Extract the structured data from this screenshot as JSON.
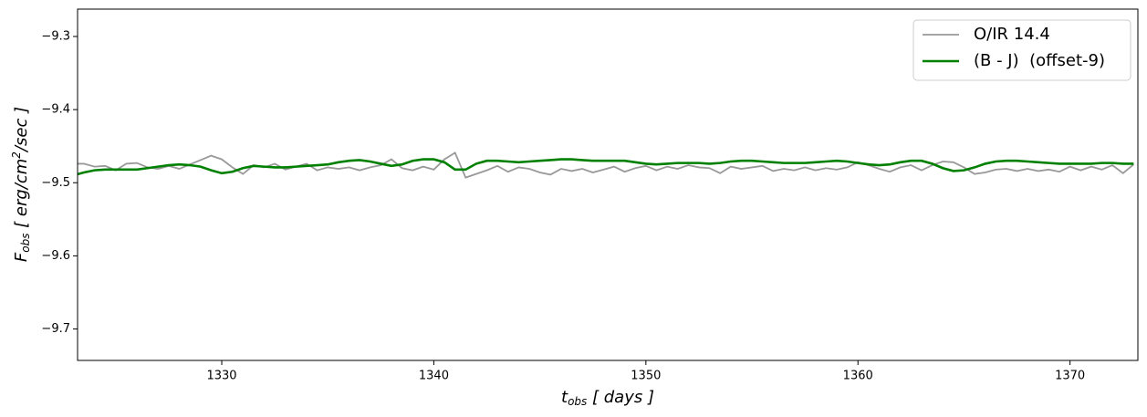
{
  "chart_data": {
    "type": "line",
    "xlabel": {
      "main": "t",
      "sub": "obs",
      "rest": " [ days ]"
    },
    "ylabel": {
      "main": "F",
      "sub": "obs",
      "rest": " [ erg/cm",
      "sup": "2",
      "tail": "/sec ]"
    },
    "xlim": [
      1323.2,
      1373.2
    ],
    "ylim": [
      -9.743,
      -9.2626
    ],
    "xticks": [
      1330,
      1340,
      1350,
      1360,
      1370
    ],
    "yticks": [
      {
        "value": -9.7,
        "label": "−9.7"
      },
      {
        "value": -9.6,
        "label": "−9.6"
      },
      {
        "value": -9.5,
        "label": "−9.5"
      },
      {
        "value": -9.4,
        "label": "−9.4"
      },
      {
        "value": -9.3,
        "label": "−9.3"
      }
    ],
    "legend": "upper right",
    "x": [
      1323,
      1323.5,
      1324,
      1324.5,
      1325,
      1325.5,
      1326,
      1326.5,
      1327,
      1327.5,
      1328,
      1328.5,
      1329,
      1329.5,
      1330,
      1330.5,
      1331,
      1331.5,
      1332,
      1332.5,
      1333,
      1333.5,
      1334,
      1334.5,
      1335,
      1335.5,
      1336,
      1336.5,
      1337,
      1337.5,
      1338,
      1338.5,
      1339,
      1339.5,
      1340,
      1340.5,
      1341,
      1341.5,
      1342,
      1342.5,
      1343,
      1343.5,
      1344,
      1344.5,
      1345,
      1345.5,
      1346,
      1346.5,
      1347,
      1347.5,
      1348,
      1348.5,
      1349,
      1349.5,
      1350,
      1350.5,
      1351,
      1351.5,
      1352,
      1352.5,
      1353,
      1353.5,
      1354,
      1354.5,
      1355,
      1355.5,
      1356,
      1356.5,
      1357,
      1357.5,
      1358,
      1358.5,
      1359,
      1359.5,
      1360,
      1360.5,
      1361,
      1361.5,
      1362,
      1362.5,
      1363,
      1363.5,
      1364,
      1364.5,
      1365,
      1365.5,
      1366,
      1366.5,
      1367,
      1367.5,
      1368,
      1368.5,
      1369,
      1369.5,
      1370,
      1370.5,
      1371,
      1371.5,
      1372,
      1372.5,
      1373
    ],
    "series": [
      {
        "name": "O/IR 14.4",
        "color": "#999999",
        "width": 1.8,
        "values": [
          -9.474,
          -9.474,
          -9.478,
          -9.477,
          -9.483,
          -9.474,
          -9.473,
          -9.479,
          -9.481,
          -9.477,
          -9.481,
          -9.475,
          -9.469,
          -9.463,
          -9.468,
          -9.479,
          -9.488,
          -9.476,
          -9.479,
          -9.474,
          -9.482,
          -9.478,
          -9.474,
          -9.483,
          -9.479,
          -9.481,
          -9.479,
          -9.483,
          -9.479,
          -9.476,
          -9.468,
          -9.48,
          -9.483,
          -9.478,
          -9.482,
          -9.468,
          -9.459,
          -9.493,
          -9.488,
          -9.483,
          -9.477,
          -9.485,
          -9.479,
          -9.481,
          -9.486,
          -9.489,
          -9.481,
          -9.484,
          -9.481,
          -9.486,
          -9.482,
          -9.478,
          -9.485,
          -9.48,
          -9.477,
          -9.483,
          -9.478,
          -9.481,
          -9.476,
          -9.479,
          -9.48,
          -9.487,
          -9.478,
          -9.481,
          -9.479,
          -9.477,
          -9.484,
          -9.481,
          -9.483,
          -9.479,
          -9.483,
          -9.48,
          -9.482,
          -9.479,
          -9.472,
          -9.476,
          -9.481,
          -9.485,
          -9.479,
          -9.476,
          -9.483,
          -9.476,
          -9.471,
          -9.472,
          -9.479,
          -9.488,
          -9.486,
          -9.482,
          -9.481,
          -9.484,
          -9.481,
          -9.484,
          -9.482,
          -9.485,
          -9.478,
          -9.483,
          -9.478,
          -9.482,
          -9.476,
          -9.487,
          -9.475
        ]
      },
      {
        "name": "(B - J)  (offset-9)",
        "color": "#008000",
        "width": 2.6,
        "values": [
          -9.49,
          -9.486,
          -9.483,
          -9.482,
          -9.482,
          -9.482,
          -9.482,
          -9.48,
          -9.478,
          -9.476,
          -9.475,
          -9.476,
          -9.478,
          -9.483,
          -9.487,
          -9.485,
          -9.48,
          -9.477,
          -9.478,
          -9.479,
          -9.479,
          -9.478,
          -9.477,
          -9.476,
          -9.475,
          -9.472,
          -9.47,
          -9.469,
          -9.471,
          -9.474,
          -9.477,
          -9.475,
          -9.47,
          -9.468,
          -9.468,
          -9.472,
          -9.482,
          -9.482,
          -9.474,
          -9.47,
          -9.47,
          -9.471,
          -9.472,
          -9.471,
          -9.47,
          -9.469,
          -9.468,
          -9.468,
          -9.469,
          -9.47,
          -9.47,
          -9.47,
          -9.47,
          -9.472,
          -9.474,
          -9.475,
          -9.474,
          -9.473,
          -9.473,
          -9.473,
          -9.474,
          -9.473,
          -9.471,
          -9.47,
          -9.47,
          -9.471,
          -9.472,
          -9.473,
          -9.473,
          -9.473,
          -9.472,
          -9.471,
          -9.47,
          -9.471,
          -9.473,
          -9.475,
          -9.476,
          -9.475,
          -9.472,
          -9.47,
          -9.47,
          -9.474,
          -9.48,
          -9.484,
          -9.483,
          -9.479,
          -9.474,
          -9.471,
          -9.47,
          -9.47,
          -9.471,
          -9.472,
          -9.473,
          -9.474,
          -9.474,
          -9.474,
          -9.474,
          -9.473,
          -9.473,
          -9.474,
          -9.474
        ]
      }
    ]
  }
}
